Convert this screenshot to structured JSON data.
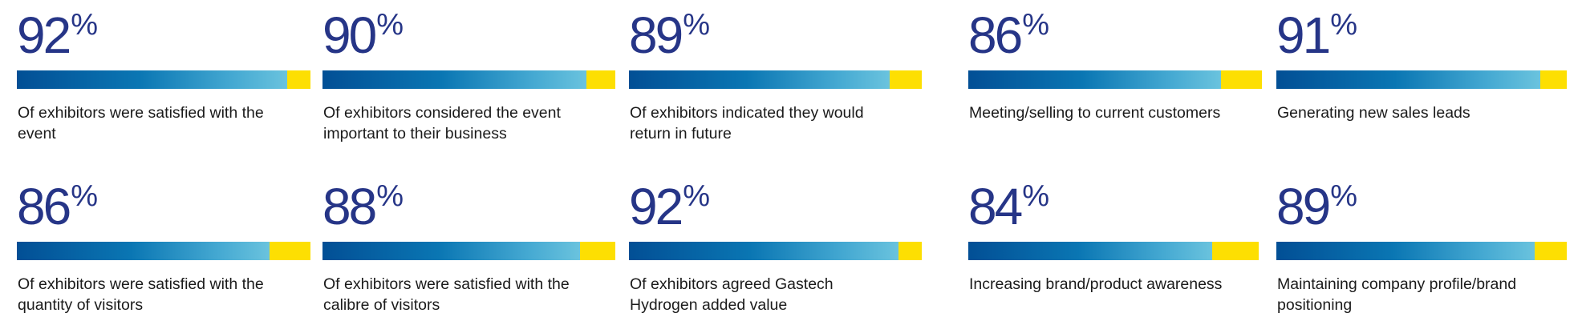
{
  "stats": [
    {
      "value": "92",
      "pct_sign": "%",
      "fraction": 0.92,
      "label_line1": "Of exhibitors were satisfied with the",
      "label_line2": "event"
    },
    {
      "value": "90",
      "pct_sign": "%",
      "fraction": 0.9,
      "label_line1": "Of exhibitors considered the event",
      "label_line2": "important to their business"
    },
    {
      "value": "89",
      "pct_sign": "%",
      "fraction": 0.89,
      "label_line1": "Of exhibitors indicated they would",
      "label_line2": "return in future"
    },
    {
      "value": "86",
      "pct_sign": "%",
      "fraction": 0.86,
      "label_line1": "Meeting/selling to current customers",
      "label_line2": ""
    },
    {
      "value": "91",
      "pct_sign": "%",
      "fraction": 0.91,
      "label_line1": "Generating new sales leads",
      "label_line2": ""
    },
    {
      "value": "86",
      "pct_sign": "%",
      "fraction": 0.86,
      "label_line1": "Of exhibitors were satisfied with the",
      "label_line2": "quantity of visitors"
    },
    {
      "value": "88",
      "pct_sign": "%",
      "fraction": 0.88,
      "label_line1": "Of exhibitors were satisfied with the",
      "label_line2": "calibre of visitors"
    },
    {
      "value": "92",
      "pct_sign": "%",
      "fraction": 0.92,
      "label_line1": "Of exhibitors agreed Gastech",
      "label_line2": "Hydrogen added value"
    },
    {
      "value": "84",
      "pct_sign": "%",
      "fraction": 0.84,
      "label_line1": "Increasing brand/product awareness",
      "label_line2": ""
    },
    {
      "value": "89",
      "pct_sign": "%",
      "fraction": 0.89,
      "label_line1": "Maintaining company profile/brand",
      "label_line2": "positioning"
    }
  ],
  "colors": {
    "percent_text": "#263587",
    "bar_start": "#024f95",
    "bar_end": "#6ac3de",
    "bar_remainder": "#fddf02"
  }
}
